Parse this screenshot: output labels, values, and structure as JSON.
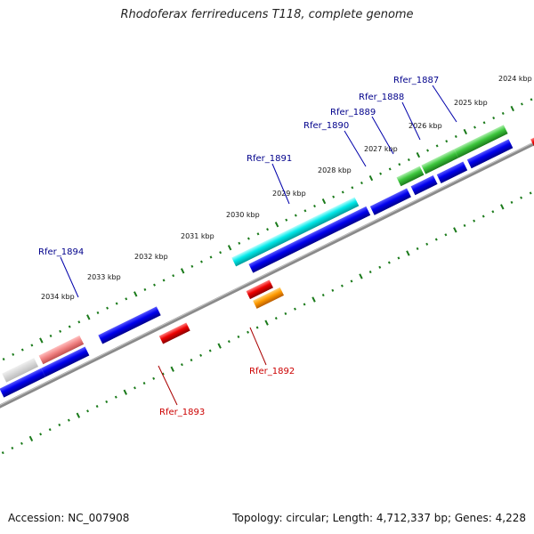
{
  "title": "Rhodoferax ferrireducens T118, complete genome",
  "footer": {
    "accession": "Accession: NC_007908",
    "summary": "Topology: circular; Length: 4,712,337 bp; Genes: 4,228"
  },
  "ticks": [
    "2024 kbp",
    "2025 kbp",
    "2026 kbp",
    "2027 kbp",
    "2028 kbp",
    "2029 kbp",
    "2030 kbp",
    "2031 kbp",
    "2032 kbp",
    "2033 kbp",
    "2034 kbp"
  ],
  "genes": {
    "rfer_1887": {
      "label": "Rfer_1887",
      "color": "#00008b"
    },
    "rfer_1888": {
      "label": "Rfer_1888",
      "color": "#00008b"
    },
    "rfer_1889": {
      "label": "Rfer_1889",
      "color": "#00008b"
    },
    "rfer_1890": {
      "label": "Rfer_1890",
      "color": "#00008b"
    },
    "rfer_1891": {
      "label": "Rfer_1891",
      "color": "#00008b"
    },
    "rfer_1892": {
      "label": "Rfer_1892",
      "color": "#cc0000"
    },
    "rfer_1893": {
      "label": "Rfer_1893",
      "color": "#cc0000"
    },
    "rfer_1894": {
      "label": "Rfer_1894",
      "color": "#00008b"
    }
  },
  "colors": {
    "backbone": "#808080",
    "tick_marks": "#1a7a1a",
    "cds_forward": "#0000ee",
    "cds_reverse": "#ee0000",
    "trna": "#ff8c00",
    "rrna": "#00e5e5",
    "green_feature": "#33bb33",
    "pink_feature": "#ee7777",
    "slate_feature": "#4b4b8f"
  }
}
